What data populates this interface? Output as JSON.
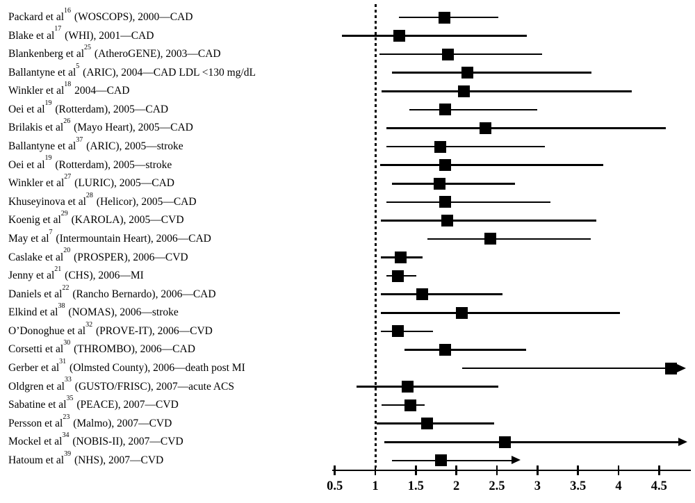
{
  "chart_data": {
    "type": "scatter",
    "subtype": "forest-plot",
    "title": "",
    "xlabel": "",
    "ylabel": "",
    "grid": false,
    "legend": null,
    "x_axis": {
      "ticks": [
        0.5,
        1,
        1.5,
        2,
        2.5,
        3,
        3.5,
        4,
        4.5
      ],
      "tick_labels": [
        "0.5",
        "1",
        "1.5",
        "2",
        "2.5",
        "3",
        "3.5",
        "4",
        "4.5"
      ],
      "drawn_range": [
        0.47,
        4.89
      ],
      "reference_line_x": 1.0
    },
    "marker_shape": "filled-square",
    "note": "Rows flagged arrow_right have upper confidence bounds truncated with a right-pointing arrow",
    "studies": [
      {
        "author": "Packard et al",
        "sup": "16",
        "detail": " (WOSCOPS), 2000—CAD",
        "estimate": 1.85,
        "ci_low": 1.29,
        "ci_high": 2.52,
        "arrow_right": false
      },
      {
        "author": "Blake et al",
        "sup": "17",
        "detail": " (WHI), 2001—CAD",
        "estimate": 1.3,
        "ci_low": 0.59,
        "ci_high": 2.87,
        "arrow_right": false
      },
      {
        "author": "Blankenberg et al",
        "sup": "25",
        "detail": " (AtheroGENE), 2003—CAD",
        "estimate": 1.9,
        "ci_low": 1.05,
        "ci_high": 3.06,
        "arrow_right": false
      },
      {
        "author": "Ballantyne et al",
        "sup": "5",
        "detail": " (ARIC), 2004—CAD LDL <130 mg/dL",
        "estimate": 2.14,
        "ci_low": 1.21,
        "ci_high": 3.67,
        "arrow_right": false
      },
      {
        "author": "Winkler et al",
        "sup": "18",
        "detail": " 2004—CAD",
        "estimate": 2.09,
        "ci_low": 1.08,
        "ci_high": 4.16,
        "arrow_right": false
      },
      {
        "author": "Oei et al",
        "sup": "19",
        "detail": " (Rotterdam), 2005—CAD",
        "estimate": 1.86,
        "ci_low": 1.42,
        "ci_high": 3.0,
        "arrow_right": false
      },
      {
        "author": "Brilakis et al",
        "sup": "26",
        "detail": " (Mayo Heart), 2005—CAD",
        "estimate": 2.36,
        "ci_low": 1.14,
        "ci_high": 4.58,
        "arrow_right": false
      },
      {
        "author": "Ballantyne et al",
        "sup": "37",
        "detail": " (ARIC), 2005—stroke",
        "estimate": 1.8,
        "ci_low": 1.14,
        "ci_high": 3.09,
        "arrow_right": false
      },
      {
        "author": "Oei et al",
        "sup": "19",
        "detail": " (Rotterdam), 2005—stroke",
        "estimate": 1.86,
        "ci_low": 1.06,
        "ci_high": 3.81,
        "arrow_right": false
      },
      {
        "author": "Winkler et al",
        "sup": "27",
        "detail": " (LURIC), 2005—CAD",
        "estimate": 1.79,
        "ci_low": 1.21,
        "ci_high": 2.72,
        "arrow_right": false
      },
      {
        "author": "Khuseyinova et al",
        "sup": "28",
        "detail": " (Helicor), 2005—CAD",
        "estimate": 1.86,
        "ci_low": 1.14,
        "ci_high": 3.16,
        "arrow_right": false
      },
      {
        "author": "Koenig et al",
        "sup": "29",
        "detail": " (KAROLA), 2005—CVD",
        "estimate": 1.89,
        "ci_low": 1.07,
        "ci_high": 3.73,
        "arrow_right": false
      },
      {
        "author": "May et al",
        "sup": "7",
        "detail": " (Intermountain Heart), 2006—CAD",
        "estimate": 2.42,
        "ci_low": 1.64,
        "ci_high": 3.66,
        "arrow_right": false
      },
      {
        "author": "Caslake et al",
        "sup": "20",
        "detail": " (PROSPER), 2006—CVD",
        "estimate": 1.31,
        "ci_low": 1.07,
        "ci_high": 1.58,
        "arrow_right": false
      },
      {
        "author": "Jenny et al",
        "sup": "21",
        "detail": " (CHS), 2006—MI",
        "estimate": 1.28,
        "ci_low": 1.14,
        "ci_high": 1.51,
        "arrow_right": false
      },
      {
        "author": "Daniels et al",
        "sup": "22",
        "detail": " (Rancho Bernardo), 2006—CAD",
        "estimate": 1.58,
        "ci_low": 1.07,
        "ci_high": 2.57,
        "arrow_right": false
      },
      {
        "author": "Elkind et al",
        "sup": "38",
        "detail": " (NOMAS), 2006—stroke",
        "estimate": 2.07,
        "ci_low": 1.07,
        "ci_high": 4.02,
        "arrow_right": false
      },
      {
        "author": "O’Donoghue et al",
        "sup": "32",
        "detail": " (PROVE-IT), 2006—CVD",
        "estimate": 1.28,
        "ci_low": 1.07,
        "ci_high": 1.71,
        "arrow_right": false
      },
      {
        "author": "Corsetti et al",
        "sup": "30",
        "detail": " (THROMBO), 2006—CAD",
        "estimate": 1.86,
        "ci_low": 1.36,
        "ci_high": 2.86,
        "arrow_right": false
      },
      {
        "author": "Gerber et al",
        "sup": "31",
        "detail": " (Olmsted County), 2006—death post MI",
        "estimate": 4.65,
        "ci_low": 2.07,
        "ci_high": 4.83,
        "arrow_right": true
      },
      {
        "author": "Oldgren et al",
        "sup": "33",
        "detail": " (GUSTO/FRISC), 2007—acute ACS",
        "estimate": 1.4,
        "ci_low": 0.77,
        "ci_high": 2.52,
        "arrow_right": false
      },
      {
        "author": "Sabatine et al",
        "sup": "35",
        "detail": " (PEACE), 2007—CVD",
        "estimate": 1.43,
        "ci_low": 1.08,
        "ci_high": 1.61,
        "arrow_right": false
      },
      {
        "author": "Persson et al",
        "sup": "23",
        "detail": " (Malmo), 2007—CVD",
        "estimate": 1.64,
        "ci_low": 1.02,
        "ci_high": 2.47,
        "arrow_right": false
      },
      {
        "author": "Mockel et al",
        "sup": "34",
        "detail": " (NOBIS-II), 2007—CVD",
        "estimate": 2.6,
        "ci_low": 1.11,
        "ci_high": 4.85,
        "arrow_right": true
      },
      {
        "author": "Hatoum et al",
        "sup": "39",
        "detail": " (NHS), 2007—CVD",
        "estimate": 1.81,
        "ci_low": 1.21,
        "ci_high": 2.79,
        "arrow_right": true
      }
    ]
  }
}
